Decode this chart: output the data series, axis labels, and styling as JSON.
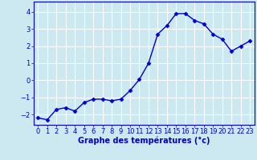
{
  "x": [
    0,
    1,
    2,
    3,
    4,
    5,
    6,
    7,
    8,
    9,
    10,
    11,
    12,
    13,
    14,
    15,
    16,
    17,
    18,
    19,
    20,
    21,
    22,
    23
  ],
  "y": [
    -2.2,
    -2.3,
    -1.7,
    -1.6,
    -1.8,
    -1.3,
    -1.1,
    -1.1,
    -1.2,
    -1.1,
    -0.6,
    0.05,
    1.0,
    2.7,
    3.2,
    3.9,
    3.9,
    3.5,
    3.3,
    2.7,
    2.4,
    1.7,
    2.0,
    2.3
  ],
  "line_color": "#0000cc",
  "marker": "D",
  "marker_size": 2.5,
  "bg_color": "#cce8f0",
  "grid_color": "#ffffff",
  "xlabel": "Graphe des températures (°c)",
  "xlabel_color": "#0000cc",
  "tick_color": "#0000cc",
  "ylim": [
    -2.6,
    4.6
  ],
  "xlim": [
    -0.5,
    23.5
  ],
  "yticks": [
    -2,
    -1,
    0,
    1,
    2,
    3,
    4
  ],
  "xtick_labels": [
    "0",
    "1",
    "2",
    "3",
    "4",
    "5",
    "6",
    "7",
    "8",
    "9",
    "10",
    "11",
    "12",
    "13",
    "14",
    "15",
    "16",
    "17",
    "18",
    "19",
    "20",
    "21",
    "22",
    "23"
  ],
  "xlabel_fontsize": 7.0,
  "tick_fontsize": 6.0,
  "linewidth": 1.0,
  "spine_color": "#0000cc",
  "bottom_bar_color": "#0000cc",
  "bottom_bar_height": 0.012
}
